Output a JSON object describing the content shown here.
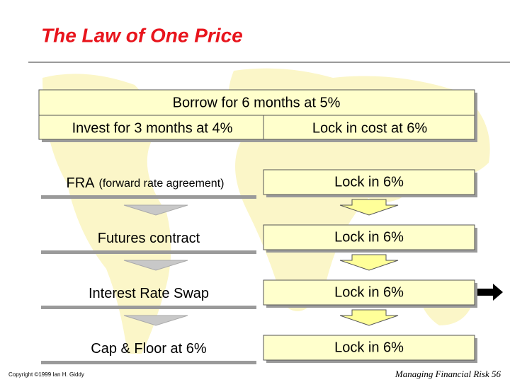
{
  "title": "The Law of One Price",
  "summary": {
    "top": "Borrow for 6 months at 5%",
    "left": "Invest for 3 months at 4%",
    "right": "Lock in cost at 6%"
  },
  "rows": [
    {
      "label": "FRA",
      "note": "(forward rate agreement)",
      "result": "Lock in 6%"
    },
    {
      "label": "Futures contract",
      "result": "Lock in 6%"
    },
    {
      "label": "Interest Rate Swap",
      "result": "Lock in 6%"
    },
    {
      "label": "Cap & Floor at 6%",
      "result": "Lock in 6%"
    }
  ],
  "footer": {
    "copyright": "Copyright ©1999 Ian H. Giddy",
    "course": "Managing Financial Risk",
    "page": "56"
  }
}
